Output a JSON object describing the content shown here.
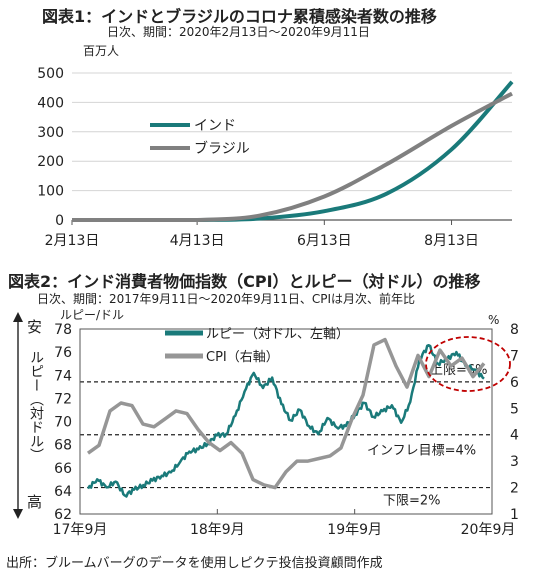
{
  "figure1": {
    "title": "図表1：インドとブラジルのコロナ累積感染者数の推移",
    "subtitle": "日次、期間：2020年2月13日～2020年9月11日",
    "unit": "百万人",
    "chart_data": {
      "type": "line",
      "x_ticks": [
        "2月13日",
        "4月13日",
        "6月13日",
        "8月13日"
      ],
      "y_ticks": [
        "0",
        "100",
        "200",
        "300",
        "400",
        "500"
      ],
      "ylim": [
        0,
        500
      ],
      "legend_position": "upper-left",
      "x": [
        "2020-02-13",
        "2020-03-13",
        "2020-04-13",
        "2020-05-13",
        "2020-06-13",
        "2020-07-13",
        "2020-08-13",
        "2020-09-11"
      ],
      "series": [
        {
          "name": "インド",
          "color": "#1a7a7a",
          "values": [
            0,
            0,
            0.1,
            5,
            30,
            90,
            240,
            470
          ]
        },
        {
          "name": "ブラジル",
          "color": "#808080",
          "values": [
            0,
            0,
            0.2,
            15,
            80,
            190,
            320,
            430
          ]
        }
      ]
    }
  },
  "figure2": {
    "title": "図表2：インド消費者物価指数（CPI）とルピー（対ドル）の推移",
    "subtitle": "日次、期間：2017年9月11日～2020年9月11日、CPIは月次、前年比",
    "left_unit": "ルピー/ドル",
    "right_unit": "%",
    "left_axis_note_top": "安",
    "left_axis_note_mid": "ルピー（対ドル）",
    "left_axis_note_bottom": "高",
    "chart_data": {
      "type": "line",
      "x_ticks": [
        "17年9月",
        "18年9月",
        "19年9月",
        "20年9月"
      ],
      "y_left_ticks": [
        "62",
        "64",
        "66",
        "68",
        "70",
        "72",
        "74",
        "76",
        "78"
      ],
      "y_right_ticks": [
        "1",
        "2",
        "3",
        "4",
        "5",
        "6",
        "7",
        "8"
      ],
      "ylim_left": [
        62,
        78
      ],
      "ylim_right": [
        1,
        8
      ],
      "legend_position": "top-left",
      "series": [
        {
          "name": "ルピー（対ドル、左軸）",
          "color": "#1a7a7a",
          "axis": "left",
          "values": [
            64.2,
            65.0,
            64.3,
            64.8,
            63.6,
            64.1,
            64.5,
            64.9,
            65.3,
            65.6,
            66.5,
            67.4,
            67.6,
            68.1,
            68.8,
            68.9,
            70.5,
            72.6,
            74.2,
            72.9,
            73.8,
            71.5,
            70.1,
            71.0,
            69.6,
            68.9,
            70.3,
            69.5,
            69.6,
            70.6,
            71.6,
            70.4,
            70.9,
            71.4,
            69.9,
            71.7,
            75.4,
            76.6,
            75.0,
            75.4,
            76.0,
            74.8,
            74.5,
            73.7
          ]
        },
        {
          "name": "CPI（右軸）",
          "color": "#969696",
          "axis": "right",
          "values": [
            3.3,
            3.6,
            4.9,
            5.2,
            5.1,
            4.4,
            4.3,
            4.6,
            4.9,
            4.8,
            4.2,
            3.7,
            3.4,
            3.7,
            3.3,
            2.3,
            2.1,
            2.0,
            2.6,
            3.0,
            3.0,
            3.1,
            3.2,
            3.5,
            4.6,
            5.5,
            7.4,
            7.6,
            6.6,
            5.8,
            7.0,
            6.2,
            7.2,
            6.6,
            6.9,
            6.2,
            6.7
          ]
        }
      ],
      "reference_lines": [
        {
          "label": "上限=6%",
          "value": 6
        },
        {
          "label": "インフレ目標=4%",
          "value": 4
        },
        {
          "label": "下限=2%",
          "value": 2
        }
      ]
    }
  },
  "source": "出所：ブルームバーグのデータを使用しピクテ投信投資顧問作成"
}
